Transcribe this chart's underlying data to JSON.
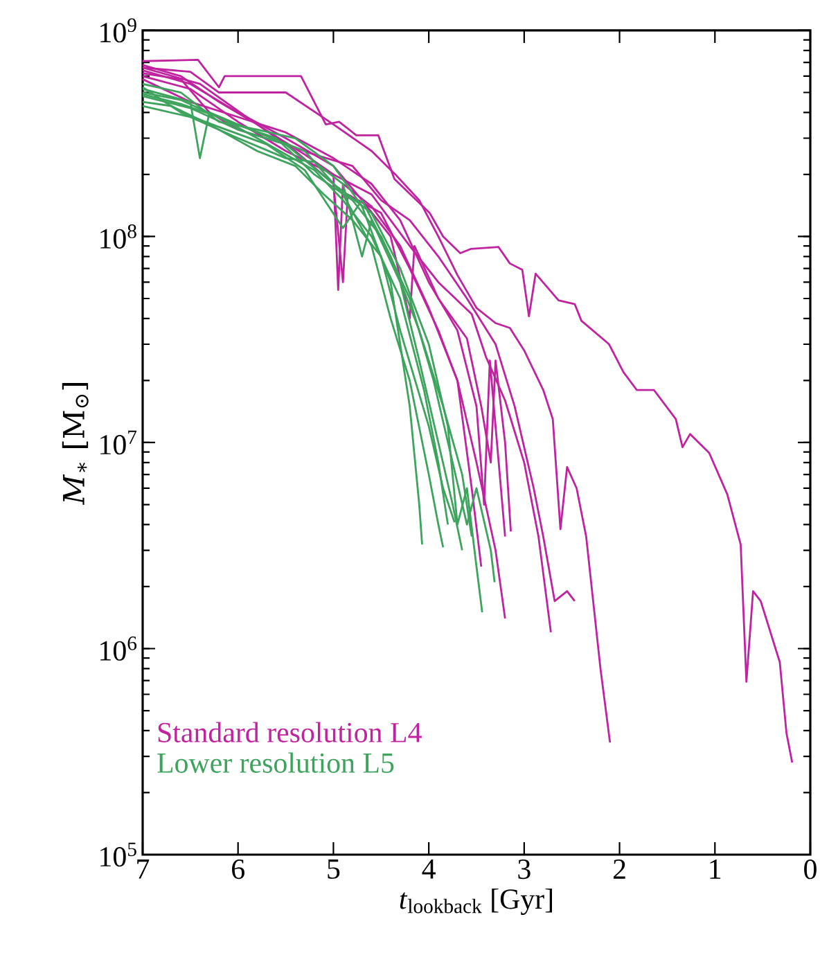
{
  "chart_data": {
    "type": "line",
    "xlabel": "*t*$_{lookback}$ [Gyr]",
    "ylabel": "*M*$_{∗}$ [M$_{⊙}$]",
    "xlim": [
      7,
      0
    ],
    "xticks": [
      7,
      6,
      5,
      4,
      3,
      2,
      1,
      0
    ],
    "ylim": [
      100000.0,
      1000000000.0
    ],
    "yticks": [
      {
        "value": 100000.0,
        "label": "10$^{5}$"
      },
      {
        "value": 1000000.0,
        "label": "10$^{6}$"
      },
      {
        "value": 10000000.0,
        "label": "10$^{7}$"
      },
      {
        "value": 100000000.0,
        "label": "10$^{8}$"
      },
      {
        "value": 1000000000.0,
        "label": "10$^{9}$"
      }
    ],
    "log": "y",
    "legend": "bottom left",
    "marker": "none",
    "line_style": "solid",
    "series": [
      {
        "name": "Standard resolution L4",
        "color": "#c0239f",
        "x": [
          7.0,
          6.42,
          6.2,
          6.14,
          5.34,
          5.08,
          4.94,
          4.76,
          4.53,
          4.36,
          3.99,
          3.85,
          3.67,
          3.56,
          3.27,
          3.15,
          3.02,
          2.95,
          2.88,
          2.64,
          2.47,
          2.4,
          2.11,
          1.96,
          1.82,
          1.64,
          1.41,
          1.34,
          1.26,
          1.06,
          0.87,
          0.73,
          0.67,
          0.6,
          0.52,
          0.32,
          0.25,
          0.19
        ],
        "values": [
          710000000.0,
          720000000.0,
          530000000.0,
          600000000.0,
          600000000.0,
          350000000.0,
          360000000.0,
          310000000.0,
          310000000.0,
          190000000.0,
          130000000.0,
          100000000.0,
          83000000.0,
          87000000.0,
          89000000.0,
          74000000.0,
          69000000.0,
          41000000.0,
          66000000.0,
          49000000.0,
          47000000.0,
          39000000.0,
          30000000.0,
          22000000.0,
          18000000.0,
          18000000.0,
          13000000.0,
          9500000.0,
          11000000.0,
          8900000.0,
          5600000.0,
          3200000.0,
          690000.0,
          1900000.0,
          1700000.0,
          860000.0,
          390000.0,
          280000.0
        ]
      },
      {
        "color": "#c0239f",
        "x": [
          7.0,
          6.5,
          6.2,
          5.5,
          5.0,
          4.6,
          4.35,
          4.1,
          3.9,
          3.7,
          3.5,
          3.3,
          3.15,
          3.0,
          2.8,
          2.7,
          2.62,
          2.55,
          2.45,
          2.35,
          2.2,
          2.1
        ],
        "values": [
          660000000.0,
          630000000.0,
          500000000.0,
          500000000.0,
          350000000.0,
          260000000.0,
          200000000.0,
          150000000.0,
          100000000.0,
          65000000.0,
          45000000.0,
          38000000.0,
          36000000.0,
          28000000.0,
          18000000.0,
          13000000.0,
          3800000.0,
          7600000.0,
          6000000.0,
          3500000.0,
          800000.0,
          350000.0
        ]
      },
      {
        "color": "#c0239f",
        "x": [
          7.0,
          6.6,
          6.3,
          6.0,
          5.5,
          5.2,
          4.8,
          4.5,
          4.2,
          3.9,
          3.6,
          3.3,
          3.1,
          2.9,
          2.8,
          2.68,
          2.55,
          2.47
        ],
        "values": [
          620000000.0,
          580000000.0,
          400000000.0,
          330000000.0,
          280000000.0,
          250000000.0,
          220000000.0,
          150000000.0,
          120000000.0,
          80000000.0,
          50000000.0,
          30000000.0,
          15000000.0,
          6000000.0,
          3500000.0,
          1700000.0,
          1900000.0,
          1700000.0
        ]
      },
      {
        "color": "#c0239f",
        "x": [
          7.0,
          6.5,
          6.0,
          5.5,
          5.0,
          4.6,
          4.2,
          3.9,
          3.55,
          3.4,
          3.2,
          3.0,
          2.85,
          2.72
        ],
        "values": [
          600000000.0,
          520000000.0,
          360000000.0,
          260000000.0,
          200000000.0,
          160000000.0,
          90000000.0,
          60000000.0,
          42000000.0,
          26000000.0,
          16000000.0,
          8000000.0,
          3500000.0,
          1200000.0
        ]
      },
      {
        "color": "#c0239f",
        "x": [
          7.0,
          6.6,
          6.2,
          5.8,
          5.4,
          5.0,
          4.9,
          4.85,
          4.5,
          4.2,
          3.9,
          3.7,
          3.5,
          3.3,
          3.2
        ],
        "values": [
          680000000.0,
          600000000.0,
          450000000.0,
          350000000.0,
          260000000.0,
          180000000.0,
          60000000.0,
          160000000.0,
          130000000.0,
          70000000.0,
          35000000.0,
          20000000.0,
          8000000.0,
          3000000.0,
          1400000.0
        ]
      },
      {
        "color": "#c0239f",
        "x": [
          7.0,
          6.5,
          6.0,
          5.5,
          5.0,
          4.7,
          4.4,
          4.2,
          4.15,
          3.9,
          3.6,
          3.45,
          3.35,
          3.3,
          3.2,
          3.14
        ],
        "values": [
          640000000.0,
          550000000.0,
          400000000.0,
          300000000.0,
          220000000.0,
          150000000.0,
          100000000.0,
          40000000.0,
          90000000.0,
          50000000.0,
          32000000.0,
          15000000.0,
          8000000.0,
          25000000.0,
          10000000.0,
          3700000.0
        ]
      },
      {
        "color": "#c0239f",
        "x": [
          7.0,
          6.5,
          6.0,
          5.5,
          5.0,
          4.6,
          4.3,
          4.0,
          3.7,
          3.5,
          3.42,
          3.36,
          3.3,
          3.2
        ],
        "values": [
          580000000.0,
          450000000.0,
          380000000.0,
          320000000.0,
          240000000.0,
          180000000.0,
          120000000.0,
          60000000.0,
          35000000.0,
          15000000.0,
          5000000.0,
          25000000.0,
          12000000.0,
          3500000.0
        ]
      },
      {
        "color": "#c0239f",
        "x": [
          7.0,
          6.4,
          5.8,
          5.3,
          5.0,
          4.95,
          4.9,
          4.6,
          4.3,
          4.0,
          3.7,
          3.55,
          3.45
        ],
        "values": [
          660000000.0,
          550000000.0,
          350000000.0,
          250000000.0,
          200000000.0,
          55000000.0,
          180000000.0,
          140000000.0,
          90000000.0,
          45000000.0,
          20000000.0,
          6000000.0,
          2500000.0
        ]
      },
      {
        "name": "Lower resolution L5",
        "color": "#3da35d",
        "x": [
          7.0,
          6.6,
          6.2,
          5.8,
          5.4,
          5.0,
          4.7,
          4.4,
          4.3,
          4.2,
          4.1,
          4.07
        ],
        "values": [
          550000000.0,
          500000000.0,
          360000000.0,
          330000000.0,
          300000000.0,
          220000000.0,
          140000000.0,
          60000000.0,
          30000000.0,
          15000000.0,
          5000000.0,
          3200000.0
        ]
      },
      {
        "color": "#3da35d",
        "x": [
          7.0,
          6.5,
          6.4,
          6.3,
          5.8,
          5.3,
          4.9,
          4.6,
          4.4,
          4.2,
          4.0,
          3.9,
          3.85
        ],
        "values": [
          520000000.0,
          450000000.0,
          240000000.0,
          400000000.0,
          320000000.0,
          260000000.0,
          160000000.0,
          90000000.0,
          40000000.0,
          20000000.0,
          7000000.0,
          4000000.0,
          3100000.0
        ]
      },
      {
        "color": "#3da35d",
        "x": [
          7.0,
          6.5,
          6.0,
          5.5,
          5.0,
          4.6,
          4.3,
          4.0,
          3.8,
          3.7,
          3.6,
          3.5,
          3.44
        ],
        "values": [
          480000000.0,
          420000000.0,
          330000000.0,
          280000000.0,
          180000000.0,
          130000000.0,
          70000000.0,
          30000000.0,
          12000000.0,
          4000000.0,
          6000000.0,
          2500000.0,
          1500000.0
        ]
      },
      {
        "color": "#3da35d",
        "x": [
          7.0,
          6.6,
          6.1,
          5.6,
          5.2,
          4.8,
          4.5,
          4.2,
          3.95,
          3.75,
          3.6,
          3.5,
          3.35,
          3.31
        ],
        "values": [
          500000000.0,
          460000000.0,
          360000000.0,
          300000000.0,
          200000000.0,
          150000000.0,
          100000000.0,
          50000000.0,
          20000000.0,
          8000000.0,
          4000000.0,
          6000000.0,
          3000000.0,
          2100000.0
        ]
      },
      {
        "color": "#3da35d",
        "x": [
          7.0,
          6.7,
          6.3,
          5.8,
          5.4,
          5.1,
          4.8,
          4.5,
          4.3,
          4.0,
          3.85,
          3.73
        ],
        "values": [
          450000000.0,
          430000000.0,
          350000000.0,
          260000000.0,
          220000000.0,
          160000000.0,
          120000000.0,
          80000000.0,
          35000000.0,
          12000000.0,
          6000000.0,
          4100000.0
        ]
      },
      {
        "color": "#3da35d",
        "x": [
          7.0,
          6.5,
          6.0,
          5.5,
          5.2,
          4.9,
          4.7,
          4.6,
          4.3,
          4.1,
          3.9,
          3.75,
          3.65
        ],
        "values": [
          430000000.0,
          380000000.0,
          300000000.0,
          240000000.0,
          230000000.0,
          180000000.0,
          80000000.0,
          120000000.0,
          60000000.0,
          25000000.0,
          10000000.0,
          5000000.0,
          3000000.0
        ]
      },
      {
        "color": "#3da35d",
        "x": [
          7.0,
          6.6,
          6.2,
          5.7,
          5.3,
          4.9,
          4.7,
          4.4,
          4.1,
          3.85,
          3.65,
          3.55
        ],
        "values": [
          530000000.0,
          400000000.0,
          340000000.0,
          280000000.0,
          210000000.0,
          110000000.0,
          150000000.0,
          80000000.0,
          35000000.0,
          15000000.0,
          7000000.0,
          3500000.0
        ]
      },
      {
        "color": "#3da35d",
        "x": [
          7.0,
          6.6,
          6.2,
          5.8,
          5.5,
          5.2,
          4.9,
          4.6,
          4.3,
          4.05,
          3.9,
          3.8
        ],
        "values": [
          490000000.0,
          440000000.0,
          380000000.0,
          300000000.0,
          250000000.0,
          210000000.0,
          150000000.0,
          100000000.0,
          50000000.0,
          18000000.0,
          8000000.0,
          4000000.0
        ]
      }
    ]
  }
}
